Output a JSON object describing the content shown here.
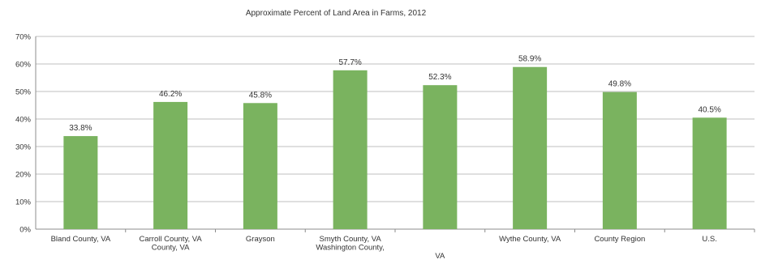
{
  "chart_data": {
    "type": "bar",
    "title": "Approximate Percent of Land Area in Farms, 2012",
    "xlabel": "",
    "ylabel": "",
    "ylim": [
      0,
      70
    ],
    "yticks": [
      "0%",
      "10%",
      "20%",
      "30%",
      "40%",
      "50%",
      "60%",
      "70%"
    ],
    "grid": true,
    "legend": "none",
    "bar_color": "#7ab35f",
    "categories": [
      "Bland County, VA",
      "Carroll County, VA",
      "Grayson County, VA",
      "Smyth County, VA",
      "Washington County, VA",
      "Wythe County, VA",
      "County Region",
      "U.S."
    ],
    "category_label_lines": [
      [
        "Bland County, VA"
      ],
      [
        "Carroll County, VA",
        "County, VA"
      ],
      [
        "Grayson"
      ],
      [
        "Smyth County, VA",
        "Washington County,"
      ],
      [
        "",
        "",
        "VA"
      ],
      [
        "Wythe County, VA"
      ],
      [
        "County Region"
      ],
      [
        "U.S."
      ]
    ],
    "values": [
      33.8,
      46.2,
      45.8,
      57.7,
      52.3,
      58.9,
      49.8,
      40.5
    ],
    "data_labels": [
      "33.8%",
      "46.2%",
      "45.8%",
      "57.7%",
      "52.3%",
      "58.9%",
      "49.8%",
      "40.5%"
    ]
  }
}
